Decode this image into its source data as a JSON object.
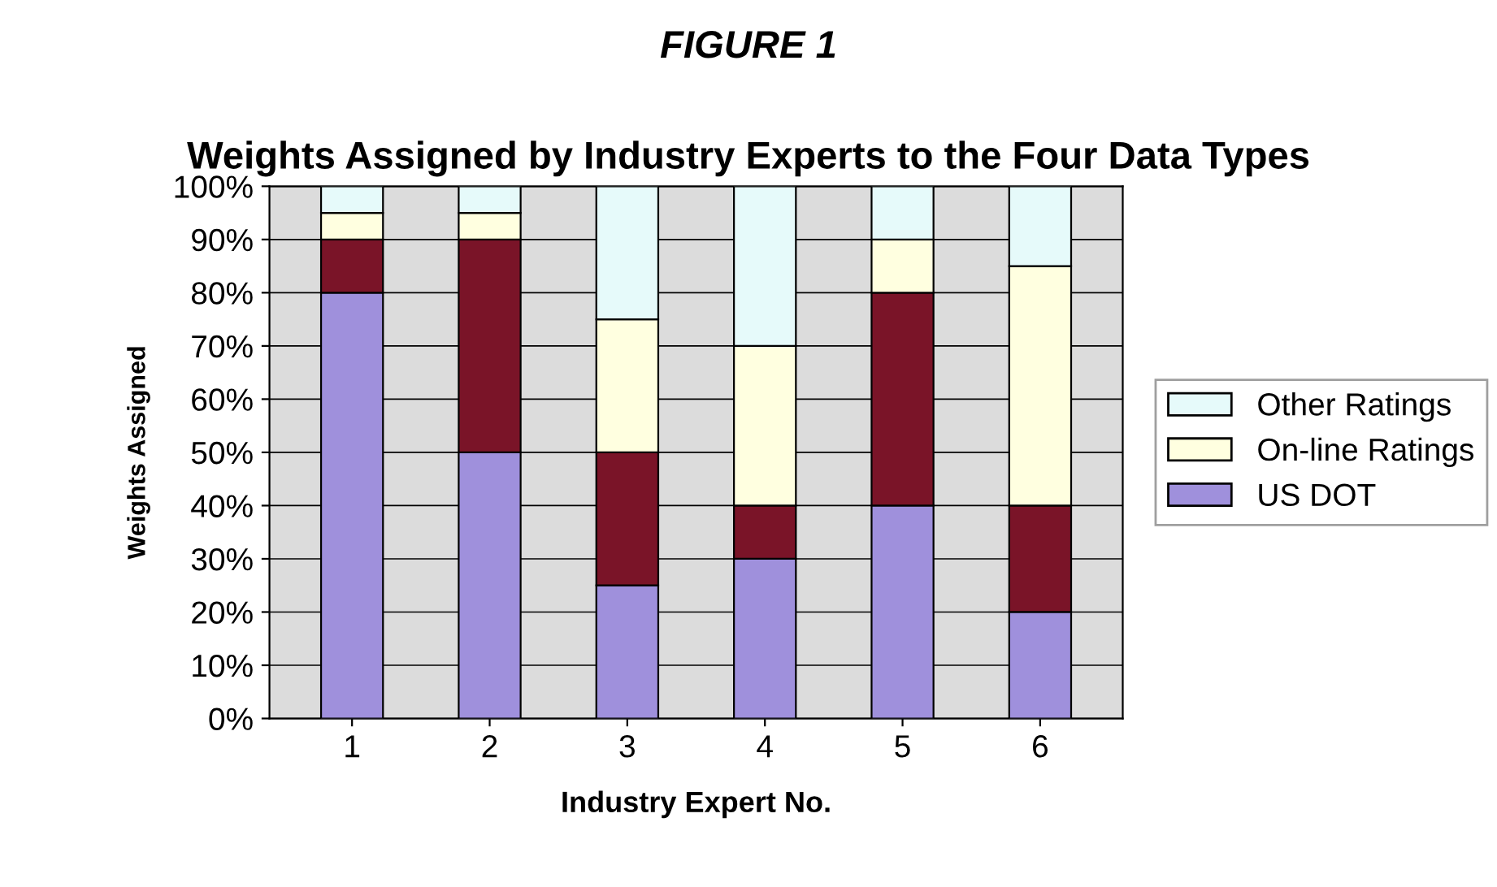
{
  "chart_data": {
    "type": "bar",
    "title": "FIGURE 1",
    "subtitle": "Weights Assigned by Industry Experts to the Four Data Types",
    "xlabel": "Industry Expert No.",
    "ylabel": "Weights Assigned",
    "categories": [
      "1",
      "2",
      "3",
      "4",
      "5",
      "6"
    ],
    "stacked": true,
    "series": [
      {
        "name": "US DOT",
        "color": "#9f90dc",
        "values": [
          80,
          50,
          25,
          30,
          40,
          20
        ]
      },
      {
        "color": "#7a1428",
        "values": [
          10,
          40,
          25,
          10,
          40,
          20
        ]
      },
      {
        "name": "On-line Ratings",
        "color": "#ffffe0",
        "values": [
          5,
          5,
          25,
          30,
          10,
          45
        ]
      },
      {
        "name": "Other Ratings",
        "color": "#e6fafa",
        "values": [
          5,
          5,
          25,
          30,
          10,
          15
        ]
      }
    ],
    "ylim": [
      0,
      100
    ],
    "yticks": [
      {
        "value": 0,
        "label": "0%"
      },
      {
        "value": 10,
        "label": "10%"
      },
      {
        "value": 20,
        "label": "20%"
      },
      {
        "value": 30,
        "label": "30%"
      },
      {
        "value": 40,
        "label": "40%"
      },
      {
        "value": 50,
        "label": "50%"
      },
      {
        "value": 60,
        "label": "60%"
      },
      {
        "value": 70,
        "label": "70%"
      },
      {
        "value": 80,
        "label": "80%"
      },
      {
        "value": 90,
        "label": "90%"
      },
      {
        "value": 100,
        "label": "100%"
      }
    ],
    "grid": "y",
    "legend": "right"
  }
}
